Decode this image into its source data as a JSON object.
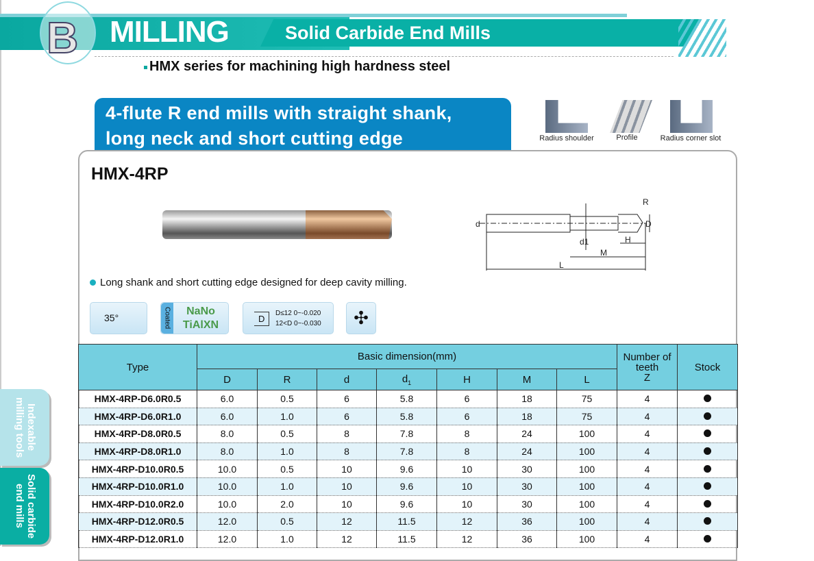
{
  "header": {
    "letter": "B",
    "section": "MILLING",
    "subtitle": "Solid Carbide End Mills",
    "series": "HMX series for machining high hardness steel"
  },
  "product": {
    "headline_line1": "4-flute R end mills with straight shank,",
    "headline_line2": "long neck and short cutting edge",
    "model": "HMX-4RP",
    "feature": "Long shank and short cutting edge designed for deep cavity milling."
  },
  "applications": [
    {
      "label": "Radius shoulder",
      "icon": "radius-shoulder-icon"
    },
    {
      "label": "Profile",
      "icon": "profile-icon"
    },
    {
      "label": "Radius corner slot",
      "icon": "radius-corner-slot-icon"
    }
  ],
  "diagram": {
    "labels": [
      "R",
      "D",
      "d",
      "d1",
      "H",
      "M",
      "L"
    ]
  },
  "badges": {
    "helix": "35°",
    "coated": "Coated",
    "coat1": "NaNo",
    "coat2": "TiAlXN",
    "tol_symbol": "D",
    "tol1": "D≤12  0~-0.020",
    "tol2": "12<D  0~-0.030"
  },
  "table": {
    "h_type": "Type",
    "h_basic": "Basic dimension(mm)",
    "h_teeth": "Number of teeth",
    "h_z": "Z",
    "h_stock": "Stock",
    "cols": [
      "D",
      "R",
      "d",
      "d1",
      "H",
      "M",
      "L"
    ],
    "rows": [
      [
        "HMX-4RP-D6.0R0.5",
        "6.0",
        "0.5",
        "6",
        "5.8",
        "6",
        "18",
        "75",
        "4"
      ],
      [
        "HMX-4RP-D6.0R1.0",
        "6.0",
        "1.0",
        "6",
        "5.8",
        "6",
        "18",
        "75",
        "4"
      ],
      [
        "HMX-4RP-D8.0R0.5",
        "8.0",
        "0.5",
        "8",
        "7.8",
        "8",
        "24",
        "100",
        "4"
      ],
      [
        "HMX-4RP-D8.0R1.0",
        "8.0",
        "1.0",
        "8",
        "7.8",
        "8",
        "24",
        "100",
        "4"
      ],
      [
        "HMX-4RP-D10.0R0.5",
        "10.0",
        "0.5",
        "10",
        "9.6",
        "10",
        "30",
        "100",
        "4"
      ],
      [
        "HMX-4RP-D10.0R1.0",
        "10.0",
        "1.0",
        "10",
        "9.6",
        "10",
        "30",
        "100",
        "4"
      ],
      [
        "HMX-4RP-D10.0R2.0",
        "10.0",
        "2.0",
        "10",
        "9.6",
        "10",
        "30",
        "100",
        "4"
      ],
      [
        "HMX-4RP-D12.0R0.5",
        "12.0",
        "0.5",
        "12",
        "11.5",
        "12",
        "36",
        "100",
        "4"
      ],
      [
        "HMX-4RP-D12.0R1.0",
        "12.0",
        "1.0",
        "12",
        "11.5",
        "12",
        "36",
        "100",
        "4"
      ]
    ],
    "stock": [
      "in-stock",
      "in-stock",
      "in-stock",
      "in-stock",
      "in-stock",
      "in-stock",
      "in-stock",
      "in-stock",
      "in-stock"
    ]
  },
  "side_tabs": [
    {
      "label": "Indexable milling tools",
      "color": "#b5e3ea"
    },
    {
      "label": "Solid carbide end mills",
      "color": "#0aaea3",
      "active": true
    }
  ]
}
